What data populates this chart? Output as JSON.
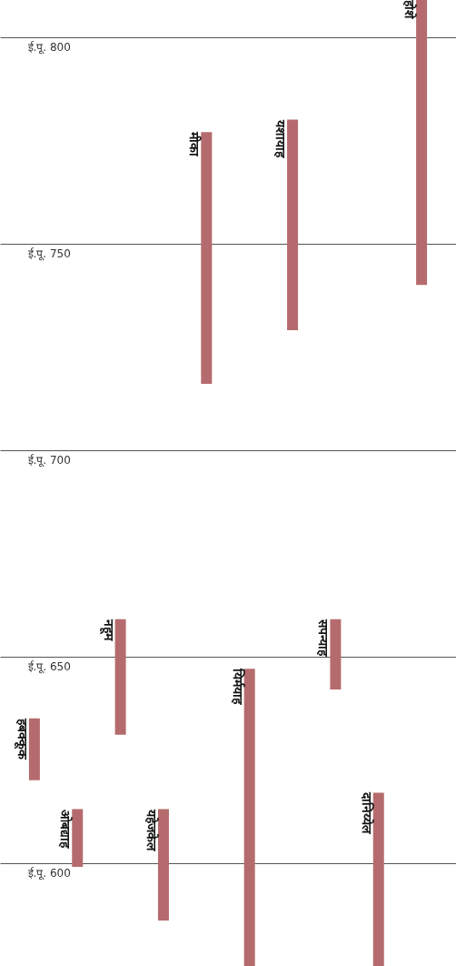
{
  "chart_data": {
    "type": "bar",
    "categories": [
      "हबक्कूक",
      "ओबद्याह",
      "नहूम",
      "यहेजकेल",
      "मीका",
      "यिर्मयाह",
      "यशायाह",
      "सपन्याह",
      "दानिय्येल",
      "होशे"
    ],
    "base": [
      620,
      599,
      631,
      586,
      716,
      575,
      729,
      642,
      575,
      740
    ],
    "values": [
      15,
      14,
      28,
      27,
      61,
      72,
      51,
      17,
      42,
      69
    ],
    "color": "#b56b6d",
    "ylim": [
      575,
      809
    ],
    "yticks": [
      {
        "value": 800,
        "label": "ई.पू. 800"
      },
      {
        "value": 750,
        "label": "ई.पू. 750"
      },
      {
        "value": 700,
        "label": "ई.पू. 700"
      },
      {
        "value": 650,
        "label": "ई.पू. 650"
      },
      {
        "value": 600,
        "label": "ई.पू. 600"
      }
    ],
    "grid": "y",
    "tick_labels": "y"
  }
}
